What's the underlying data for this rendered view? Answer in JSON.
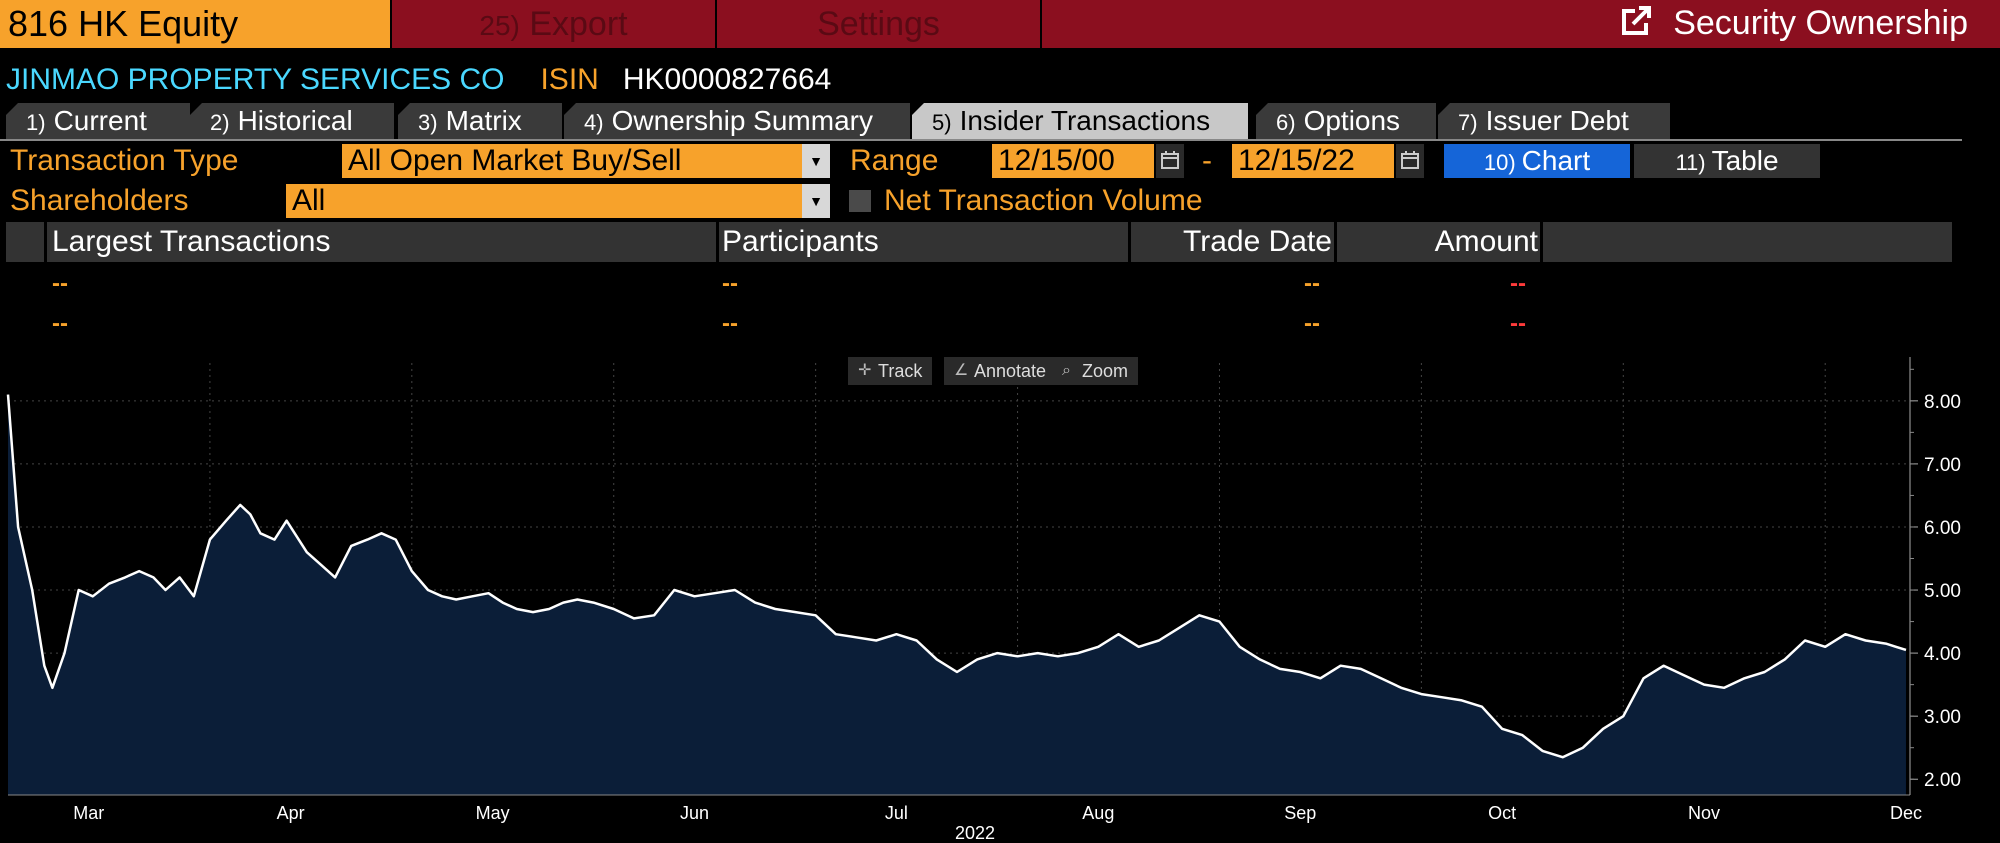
{
  "topbar": {
    "ticker": "816 HK Equity",
    "export_num": "25)",
    "export_label": "Export",
    "settings_label": "Settings",
    "title": "Security Ownership"
  },
  "security": {
    "company": "JINMAO PROPERTY SERVICES CO",
    "isin_label": "ISIN",
    "isin_value": "HK0000827664"
  },
  "tabs": [
    {
      "num": "1)",
      "label": "Current"
    },
    {
      "num": "2)",
      "label": "Historical"
    },
    {
      "num": "3)",
      "label": "Matrix"
    },
    {
      "num": "4)",
      "label": "Ownership Summary"
    },
    {
      "num": "5)",
      "label": "Insider Transactions",
      "active": true
    },
    {
      "num": "6)",
      "label": "Options"
    },
    {
      "num": "7)",
      "label": "Issuer Debt"
    }
  ],
  "controls": {
    "transaction_type_label": "Transaction Type",
    "transaction_type_value": "All Open Market Buy/Sell",
    "range_label": "Range",
    "range_start": "12/15/00",
    "range_sep": "-",
    "range_end": "12/15/22",
    "chart_num": "10)",
    "chart_label": "Chart",
    "table_num": "11)",
    "table_label": "Table",
    "shareholders_label": "Shareholders",
    "shareholders_value": "All",
    "net_volume_label": "Net Transaction Volume",
    "net_volume_checked": false
  },
  "transactions": {
    "headers": [
      "Largest Transactions",
      "Participants",
      "Trade Date",
      "Amount"
    ],
    "rows": [
      [
        "--",
        "--",
        "--",
        "--"
      ],
      [
        "--",
        "--",
        "--",
        "--"
      ]
    ]
  },
  "chart_tools": [
    "Track",
    "Annotate",
    "Zoom"
  ],
  "chart_data": {
    "type": "area",
    "xlabel": "2022",
    "month_ticks": [
      "Mar",
      "Apr",
      "May",
      "Jun",
      "Jul",
      "Aug",
      "Sep",
      "Oct",
      "Nov",
      "Dec"
    ],
    "month_tick_x": [
      0.4,
      1.4,
      2.4,
      3.4,
      4.4,
      5.4,
      6.4,
      7.4,
      8.4,
      9.4
    ],
    "y_ticks": [
      "2.00",
      "3.00",
      "4.00",
      "5.00",
      "6.00",
      "7.00",
      "8.00"
    ],
    "y_tick_values": [
      2,
      3,
      4,
      5,
      6,
      7,
      8
    ],
    "ylim": [
      1.75,
      8.6
    ],
    "xlim": [
      0,
      9.42
    ],
    "line_color": "#ffffff",
    "fill_color": "#0b1e38",
    "x": [
      0.0,
      0.05,
      0.12,
      0.18,
      0.22,
      0.28,
      0.35,
      0.42,
      0.5,
      0.58,
      0.65,
      0.72,
      0.78,
      0.85,
      0.92,
      1.0,
      1.08,
      1.15,
      1.2,
      1.25,
      1.32,
      1.38,
      1.42,
      1.48,
      1.55,
      1.62,
      1.7,
      1.78,
      1.85,
      1.92,
      2.0,
      2.08,
      2.15,
      2.22,
      2.3,
      2.38,
      2.45,
      2.52,
      2.6,
      2.68,
      2.75,
      2.82,
      2.9,
      3.0,
      3.1,
      3.2,
      3.3,
      3.4,
      3.5,
      3.6,
      3.7,
      3.8,
      3.9,
      4.0,
      4.1,
      4.2,
      4.3,
      4.4,
      4.5,
      4.6,
      4.7,
      4.8,
      4.9,
      5.0,
      5.1,
      5.2,
      5.3,
      5.4,
      5.5,
      5.6,
      5.7,
      5.8,
      5.9,
      6.0,
      6.1,
      6.2,
      6.3,
      6.4,
      6.5,
      6.6,
      6.7,
      6.8,
      6.9,
      7.0,
      7.1,
      7.2,
      7.3,
      7.4,
      7.5,
      7.6,
      7.7,
      7.8,
      7.9,
      8.0,
      8.1,
      8.2,
      8.3,
      8.4,
      8.5,
      8.6,
      8.7,
      8.8,
      8.9,
      9.0,
      9.1,
      9.2,
      9.3,
      9.35,
      9.4
    ],
    "y": [
      8.1,
      6.0,
      5.0,
      3.8,
      3.45,
      4.0,
      5.0,
      4.9,
      5.1,
      5.2,
      5.3,
      5.2,
      5.0,
      5.2,
      4.9,
      5.8,
      6.1,
      6.35,
      6.2,
      5.9,
      5.8,
      6.1,
      5.9,
      5.6,
      5.4,
      5.2,
      5.7,
      5.8,
      5.9,
      5.8,
      5.3,
      5.0,
      4.9,
      4.85,
      4.9,
      4.95,
      4.8,
      4.7,
      4.65,
      4.7,
      4.8,
      4.85,
      4.8,
      4.7,
      4.55,
      4.6,
      5.0,
      4.9,
      4.95,
      5.0,
      4.8,
      4.7,
      4.65,
      4.6,
      4.3,
      4.25,
      4.2,
      4.3,
      4.2,
      3.9,
      3.7,
      3.9,
      4.0,
      3.95,
      4.0,
      3.95,
      4.0,
      4.1,
      4.3,
      4.1,
      4.2,
      4.4,
      4.6,
      4.5,
      4.1,
      3.9,
      3.75,
      3.7,
      3.6,
      3.8,
      3.75,
      3.6,
      3.45,
      3.35,
      3.3,
      3.25,
      3.15,
      2.8,
      2.7,
      2.45,
      2.35,
      2.5,
      2.8,
      3.0,
      3.6,
      3.8,
      3.65,
      3.5,
      3.45,
      3.6,
      3.7,
      3.9,
      4.2,
      4.1,
      4.3,
      4.2,
      4.15,
      4.1,
      4.05
    ]
  }
}
